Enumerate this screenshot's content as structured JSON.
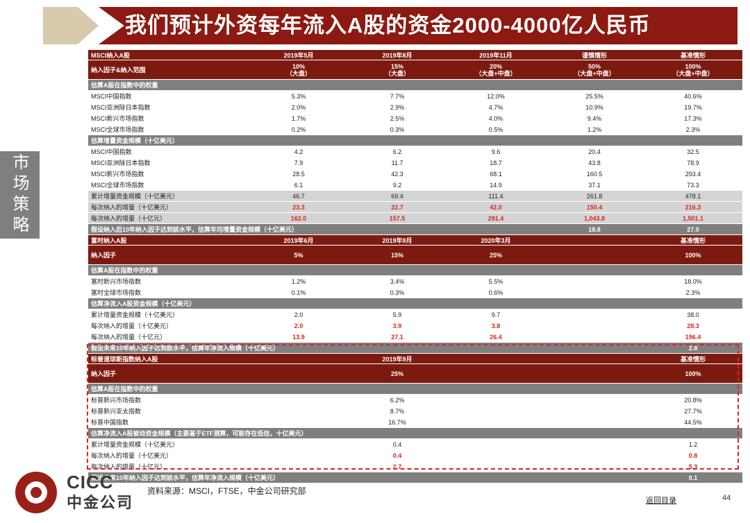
{
  "title": "我们预计外资每年流入A股的资金2000-4000亿人民币",
  "side_tab": "市场策略",
  "msci": {
    "header": [
      [
        "MSCI纳入A股",
        "2019年5月",
        "2019年8月",
        "2019年11月",
        "谨慎情形",
        "基准情形"
      ],
      [
        "纳入因子&纳入范围",
        "10%\n（大盘）",
        "15%\n（大盘）",
        "20%\n（大盘+中盘）",
        "50%\n（大盘+中盘）",
        "100%\n（大盘+中盘）"
      ]
    ],
    "sec1": "估算A股在指数中的权重",
    "weights": [
      [
        "MSCI中国指数",
        "5.3%",
        "7.7%",
        "12.0%",
        "25.5%",
        "40.6%"
      ],
      [
        "MSCI亚洲除日本指数",
        "2.0%",
        "2.9%",
        "4.7%",
        "10.9%",
        "19.7%"
      ],
      [
        "MSCI新兴市场指数",
        "1.7%",
        "2.5%",
        "4.0%",
        "9.4%",
        "17.3%"
      ],
      [
        "MSCI全球市场指数",
        "0.2%",
        "0.3%",
        "0.5%",
        "1.2%",
        "2.3%"
      ]
    ],
    "sec2": "估算增量资金规模（十亿美元）",
    "flows": [
      [
        "MSCI中国指数",
        "4.2",
        "6.2",
        "9.6",
        "20.4",
        "32.5"
      ],
      [
        "MSCI亚洲除日本指数",
        "7.9",
        "11.7",
        "18.7",
        "43.8",
        "78.9"
      ],
      [
        "MSCI新兴市场指数",
        "28.5",
        "42.3",
        "68.1",
        "160.5",
        "293.4"
      ],
      [
        "MSCI全球市场指数",
        "6.1",
        "9.2",
        "14.9",
        "37.1",
        "73.3"
      ]
    ],
    "totals": [
      [
        "累计增量资金规模（十亿美元）",
        "46.7",
        "69.4",
        "111.4",
        "261.8",
        "478.1"
      ],
      [
        "每次纳入的增量（十亿美元）",
        "23.3",
        "22.7",
        "42.0",
        "150.4",
        "216.3"
      ],
      [
        "每次纳入的增量（十亿元）",
        "162.0",
        "157.5",
        "291.4",
        "1,043.8",
        "1,501.1"
      ]
    ],
    "footer": [
      "假设纳入后10年纳入因子达到該水平，估算年均增量资金规模（十亿美元）",
      "",
      "",
      "",
      "18.8",
      "27.0"
    ]
  },
  "ftse": {
    "header": [
      [
        "富时纳入A股",
        "2019年6月",
        "2019年9月",
        "2020年3月",
        "",
        "基准情形"
      ],
      [
        "纳入因子",
        "5%",
        "15%",
        "25%",
        "",
        "100%"
      ]
    ],
    "sec1": "估算A股在指数中的权重",
    "weights": [
      [
        "富时新兴市场指数",
        "1.2%",
        "3.4%",
        "5.5%",
        "",
        "18.0%"
      ],
      [
        "富时全球市场指数",
        "0.1%",
        "0.3%",
        "0.6%",
        "",
        "2.3%"
      ]
    ],
    "sec2": "估算净流入A股资金规模（十亿美元）",
    "totals": [
      [
        "累计增量资金规模（十亿美元）",
        "2.0",
        "5.9",
        "9.7",
        "",
        "38.0"
      ],
      [
        "每次纳入的增量（十亿美元）",
        "2.0",
        "3.9",
        "3.8",
        "",
        "28.3"
      ],
      [
        "每次纳入的增量（十亿元）",
        "13.9",
        "27.1",
        "26.4",
        "",
        "196.4"
      ]
    ],
    "footer": [
      "假设未来10年纳入因子达到該水平，估算年净流入规模（十亿美元）",
      "",
      "",
      "",
      "",
      "2.8"
    ]
  },
  "sp": {
    "header": [
      [
        "标普道琼斯指数纳入A股",
        "",
        "2019年9月",
        "",
        "",
        "基准情形"
      ],
      [
        "纳入因子",
        "",
        "25%",
        "",
        "",
        "100%"
      ]
    ],
    "sec1": "估算A股在指数中的权重",
    "weights": [
      [
        "标普新兴市场指数",
        "",
        "6.2%",
        "",
        "",
        "20.8%"
      ],
      [
        "标普新兴亚太指数",
        "",
        "8.7%",
        "",
        "",
        "27.7%"
      ],
      [
        "标普中国指数",
        "",
        "16.7%",
        "",
        "",
        "44.5%"
      ]
    ],
    "sec2": "估算净流入A股被动资金规模（主要基于ETF测算，可能存在低估，十亿美元）",
    "totals": [
      [
        "累计增量资金规模（十亿美元）",
        "",
        "0.4",
        "",
        "",
        "1.2"
      ],
      [
        "每次纳入的增量（十亿美元）",
        "",
        "0.4",
        "",
        "",
        "0.8"
      ],
      [
        "每次纳入的增量（十亿元）",
        "",
        "2.7",
        "",
        "",
        "5.3"
      ]
    ],
    "footer": [
      "假设未来10年纳入因子达到該水平，估算年净流入规模（十亿美元）",
      "",
      "",
      "",
      "",
      "0.1"
    ]
  },
  "logo": {
    "en": "CICC",
    "cn": "中金公司"
  },
  "source": "资料来源：MSCI，FTSE，中金公司研究部",
  "back_link": "返回目录",
  "page_number": "44",
  "colors": {
    "banner": "#8c1a12",
    "header_row": "#7d1a10",
    "section_row": "#7f7f7f",
    "highlight_red": "#d7261e",
    "dashed_border": "#dd2222"
  }
}
